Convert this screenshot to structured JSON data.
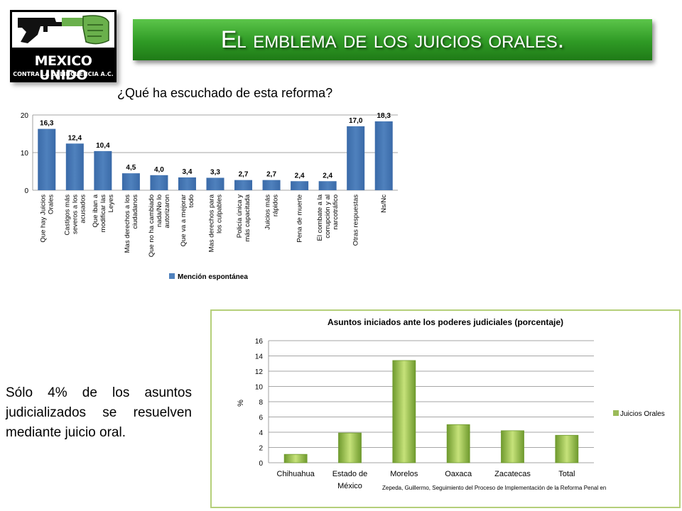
{
  "logo": {
    "line1": "MEXICO UNIDO",
    "line2": "CONTRA LA DELINCUENCIA A.C."
  },
  "title": "El emblema de los juicios orales.",
  "question": "¿Qué ha escuchado de esta reforma?",
  "paragraph": "Sólo 4% de los asuntos judicializados se resuelven mediante juicio oral.",
  "colors": {
    "bar1": "#4f81bd",
    "bar2": "#9bbb59",
    "banner": "#2f9a25"
  },
  "chart_data": [
    {
      "type": "bar",
      "categories": [
        "Que hay Juicios Orales",
        "Castigos más severos a los acusados",
        "Que iban a modificar las Leyes",
        "Mas derechos a los ciudadanos",
        "Que no ha cambiado nada/No lo autorizaron",
        "Que va a mejorar todo",
        "Mas derechos para los culpables",
        "Policía única y más capacitada",
        "Juicios más rápidos",
        "Pena de muerte",
        "El combate a la corrupción y al narcotráfico",
        "Otras respuestas",
        "Ns/Nc"
      ],
      "values": [
        16.3,
        12.4,
        10.4,
        4.5,
        4.0,
        3.4,
        3.3,
        2.7,
        2.7,
        2.4,
        2.4,
        17.0,
        18.3
      ],
      "value_labels": [
        "16,3",
        "12,4",
        "10,4",
        "4,5",
        "4,0",
        "3,4",
        "3,3",
        "2,7",
        "2,7",
        "2,4",
        "2,4",
        "17,0",
        "18,3"
      ],
      "series": [
        {
          "name": "Mención espontánea",
          "values": [
            16.3,
            12.4,
            10.4,
            4.5,
            4.0,
            3.4,
            3.3,
            2.7,
            2.7,
            2.4,
            2.4,
            17.0,
            18.3
          ]
        }
      ],
      "yticks": [
        "0",
        "10",
        "20"
      ],
      "ylim": [
        0,
        20
      ],
      "grid": true,
      "legend": "bottom"
    },
    {
      "type": "bar",
      "title": "Asuntos iniciados ante los poderes judiciales (porcentaje)",
      "ylabel": "%",
      "categories": [
        "Chihuahua",
        "Estado de México",
        "Morelos",
        "Oaxaca",
        "Zacatecas",
        "Total"
      ],
      "values": [
        1.1,
        3.9,
        13.4,
        5.0,
        4.2,
        3.6
      ],
      "series": [
        {
          "name": "Juicios Orales",
          "values": [
            1.1,
            3.9,
            13.4,
            5.0,
            4.2,
            3.6
          ]
        }
      ],
      "yticks": [
        "0",
        "2",
        "4",
        "6",
        "8",
        "10",
        "12",
        "14",
        "16"
      ],
      "ylim": [
        0,
        16
      ],
      "grid": true,
      "legend": "right",
      "source": "Zepeda, Guillermo, Seguimiento del Proceso de Implementación de la Reforma Penal en"
    }
  ]
}
